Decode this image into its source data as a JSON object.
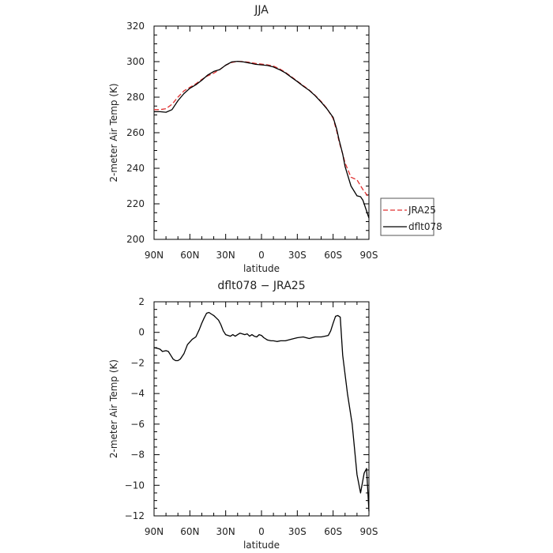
{
  "chart_data": [
    {
      "type": "line",
      "title": "JJA",
      "xlabel": "latitude",
      "ylabel": "2-meter Air Temp (K)",
      "xlim": [
        90,
        -90
      ],
      "ylim": [
        200,
        320
      ],
      "xticks": [
        {
          "value": 90,
          "label": "90N"
        },
        {
          "value": 60,
          "label": "60N"
        },
        {
          "value": 30,
          "label": "30N"
        },
        {
          "value": 0,
          "label": "0"
        },
        {
          "value": -30,
          "label": "30S"
        },
        {
          "value": -60,
          "label": "60S"
        },
        {
          "value": -90,
          "label": "90S"
        }
      ],
      "yticks": [
        200,
        220,
        240,
        260,
        280,
        300,
        320
      ],
      "legend": {
        "placement": "right",
        "entries": [
          "JRA25",
          "dflt078"
        ]
      },
      "series": [
        {
          "name": "JRA25",
          "color": "#e03030",
          "dash": "dashed",
          "x": [
            90,
            85,
            80,
            75,
            70,
            65,
            60,
            55,
            50,
            45,
            40,
            35,
            30,
            25,
            20,
            15,
            10,
            5,
            0,
            -5,
            -10,
            -15,
            -20,
            -25,
            -30,
            -35,
            -40,
            -45,
            -50,
            -55,
            -60,
            -63,
            -65,
            -68,
            -70,
            -75,
            -80,
            -85,
            -90
          ],
          "y": [
            273,
            273,
            273.5,
            276,
            280,
            283.5,
            285.5,
            287.5,
            290,
            292,
            293.5,
            295.5,
            298,
            299.5,
            300.2,
            300,
            299.6,
            299,
            298.6,
            298.2,
            297.5,
            296,
            294,
            291.5,
            289,
            286.5,
            284,
            281,
            277.5,
            273.5,
            268,
            261,
            255,
            248,
            243,
            235,
            233.5,
            228,
            223.5
          ]
        },
        {
          "name": "dflt078",
          "color": "#000000",
          "dash": "solid",
          "x": [
            90,
            85,
            80,
            75,
            70,
            65,
            60,
            55,
            50,
            45,
            40,
            35,
            30,
            25,
            20,
            15,
            10,
            5,
            0,
            -5,
            -10,
            -15,
            -20,
            -25,
            -30,
            -35,
            -40,
            -45,
            -50,
            -55,
            -60,
            -63,
            -65,
            -68,
            -70,
            -75,
            -80,
            -83,
            -85,
            -88,
            -90
          ],
          "y": [
            271.8,
            271.8,
            271.5,
            273,
            278,
            282,
            285,
            287,
            289.5,
            292.5,
            294.5,
            295.5,
            298,
            299.8,
            300.2,
            299.8,
            299.2,
            298.5,
            298.2,
            297.8,
            297,
            295.5,
            293.7,
            291.2,
            288.8,
            286.2,
            283.8,
            280.8,
            277.2,
            273.3,
            268.6,
            262,
            256,
            248,
            241,
            230,
            224.5,
            224,
            222,
            216,
            212
          ]
        }
      ]
    },
    {
      "type": "line",
      "title": "dflt078 − JRA25",
      "xlabel": "latitude",
      "ylabel": "2-meter Air Temp (K)",
      "xlim": [
        90,
        -90
      ],
      "ylim": [
        -12,
        2
      ],
      "xticks": [
        {
          "value": 90,
          "label": "90N"
        },
        {
          "value": 60,
          "label": "60N"
        },
        {
          "value": 30,
          "label": "30N"
        },
        {
          "value": 0,
          "label": "0"
        },
        {
          "value": -30,
          "label": "30S"
        },
        {
          "value": -60,
          "label": "60S"
        },
        {
          "value": -90,
          "label": "90S"
        }
      ],
      "yticks": [
        -12,
        -10,
        -8,
        -6,
        -4,
        -2,
        0,
        2
      ],
      "series": [
        {
          "color": "#000000",
          "dash": "solid",
          "x": [
            90,
            87,
            85,
            83,
            80,
            78,
            76,
            74,
            72,
            70,
            68,
            65,
            62,
            58,
            55,
            52,
            50,
            48,
            46,
            44,
            42,
            40,
            38,
            36,
            34,
            32,
            30,
            28,
            26,
            24,
            22,
            20,
            18,
            16,
            14,
            12,
            10,
            8,
            6,
            4,
            2,
            0,
            -2,
            -5,
            -8,
            -10,
            -13,
            -16,
            -20,
            -25,
            -30,
            -35,
            -40,
            -45,
            -50,
            -53,
            -56,
            -58,
            -60,
            -62,
            -64,
            -66,
            -68,
            -72,
            -76,
            -80,
            -83,
            -86,
            -88,
            -90
          ],
          "y": [
            -1.0,
            -1.05,
            -1.1,
            -1.25,
            -1.2,
            -1.25,
            -1.5,
            -1.75,
            -1.85,
            -1.85,
            -1.75,
            -1.4,
            -0.8,
            -0.45,
            -0.3,
            0.2,
            0.6,
            0.95,
            1.25,
            1.3,
            1.2,
            1.1,
            0.95,
            0.8,
            0.5,
            0.1,
            -0.15,
            -0.2,
            -0.25,
            -0.15,
            -0.25,
            -0.15,
            -0.05,
            -0.1,
            -0.15,
            -0.1,
            -0.25,
            -0.15,
            -0.25,
            -0.3,
            -0.15,
            -0.2,
            -0.35,
            -0.5,
            -0.55,
            -0.55,
            -0.6,
            -0.55,
            -0.55,
            -0.45,
            -0.35,
            -0.3,
            -0.4,
            -0.3,
            -0.3,
            -0.25,
            -0.2,
            0.1,
            0.6,
            1.05,
            1.1,
            1.0,
            -1.5,
            -4.0,
            -6.0,
            -9.3,
            -10.5,
            -9.2,
            -8.9,
            -11.7
          ]
        }
      ]
    }
  ]
}
